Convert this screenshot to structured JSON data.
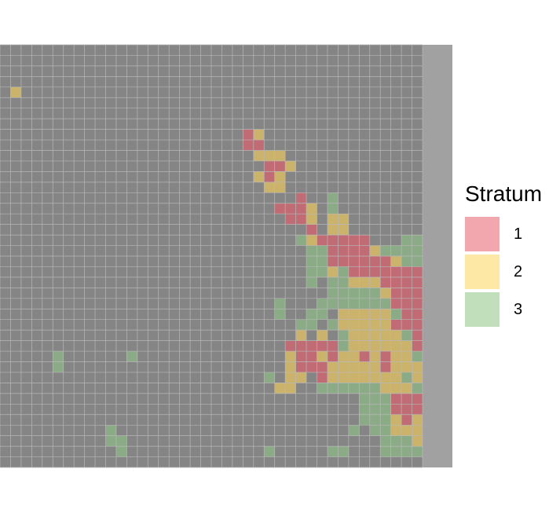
{
  "chart_data": {
    "type": "heatmap",
    "title": "",
    "xlabel": "",
    "ylabel": "",
    "grid": true,
    "legend_placement": "right",
    "legend": {
      "title": "Stratum",
      "entries": [
        {
          "label": "1",
          "color": "#f2a6ad"
        },
        {
          "label": "2",
          "color": "#fde8a6"
        },
        {
          "label": "3",
          "color": "#c0dfba"
        }
      ]
    },
    "background_color": "#858585",
    "strip_color": "#a1a1a1",
    "cell_colors": {
      "1": "#c16c75",
      "2": "#ccb36b",
      "3": "#8bab86"
    },
    "ncols": 40,
    "nrows": 40,
    "cells": [
      [
        1,
        4,
        2
      ],
      [
        23,
        8,
        1
      ],
      [
        24,
        8,
        2
      ],
      [
        23,
        9,
        1
      ],
      [
        24,
        9,
        1
      ],
      [
        24,
        10,
        2
      ],
      [
        25,
        10,
        2
      ],
      [
        26,
        10,
        2
      ],
      [
        25,
        11,
        1
      ],
      [
        26,
        11,
        1
      ],
      [
        27,
        11,
        2
      ],
      [
        24,
        12,
        2
      ],
      [
        25,
        12,
        1
      ],
      [
        26,
        12,
        2
      ],
      [
        25,
        13,
        2
      ],
      [
        26,
        13,
        2
      ],
      [
        28,
        14,
        1
      ],
      [
        31,
        14,
        3
      ],
      [
        26,
        15,
        1
      ],
      [
        27,
        15,
        1
      ],
      [
        28,
        15,
        1
      ],
      [
        29,
        15,
        2
      ],
      [
        31,
        15,
        3
      ],
      [
        27,
        16,
        1
      ],
      [
        28,
        16,
        1
      ],
      [
        29,
        16,
        2
      ],
      [
        31,
        16,
        2
      ],
      [
        32,
        16,
        2
      ],
      [
        29,
        17,
        1
      ],
      [
        31,
        17,
        2
      ],
      [
        32,
        17,
        2
      ],
      [
        28,
        18,
        3
      ],
      [
        29,
        18,
        2
      ],
      [
        30,
        18,
        1
      ],
      [
        31,
        18,
        1
      ],
      [
        32,
        18,
        1
      ],
      [
        33,
        18,
        1
      ],
      [
        34,
        18,
        1
      ],
      [
        38,
        18,
        3
      ],
      [
        39,
        18,
        3
      ],
      [
        29,
        19,
        3
      ],
      [
        30,
        19,
        3
      ],
      [
        31,
        19,
        1
      ],
      [
        32,
        19,
        1
      ],
      [
        33,
        19,
        1
      ],
      [
        34,
        19,
        1
      ],
      [
        35,
        19,
        2
      ],
      [
        36,
        19,
        3
      ],
      [
        37,
        19,
        3
      ],
      [
        38,
        19,
        3
      ],
      [
        39,
        19,
        3
      ],
      [
        29,
        20,
        3
      ],
      [
        30,
        20,
        3
      ],
      [
        31,
        20,
        1
      ],
      [
        32,
        20,
        1
      ],
      [
        33,
        20,
        1
      ],
      [
        34,
        20,
        1
      ],
      [
        35,
        20,
        1
      ],
      [
        36,
        20,
        1
      ],
      [
        37,
        20,
        2
      ],
      [
        38,
        20,
        3
      ],
      [
        39,
        20,
        3
      ],
      [
        29,
        21,
        3
      ],
      [
        30,
        21,
        3
      ],
      [
        31,
        21,
        2
      ],
      [
        32,
        21,
        3
      ],
      [
        33,
        21,
        1
      ],
      [
        34,
        21,
        1
      ],
      [
        35,
        21,
        1
      ],
      [
        36,
        21,
        1
      ],
      [
        37,
        21,
        1
      ],
      [
        38,
        21,
        1
      ],
      [
        39,
        21,
        1
      ],
      [
        29,
        22,
        3
      ],
      [
        31,
        22,
        3
      ],
      [
        32,
        22,
        3
      ],
      [
        33,
        22,
        2
      ],
      [
        34,
        22,
        2
      ],
      [
        35,
        22,
        2
      ],
      [
        36,
        22,
        1
      ],
      [
        37,
        22,
        1
      ],
      [
        38,
        22,
        1
      ],
      [
        39,
        22,
        1
      ],
      [
        31,
        23,
        3
      ],
      [
        32,
        23,
        3
      ],
      [
        33,
        23,
        3
      ],
      [
        34,
        23,
        3
      ],
      [
        35,
        23,
        3
      ],
      [
        36,
        23,
        2
      ],
      [
        37,
        23,
        1
      ],
      [
        38,
        23,
        1
      ],
      [
        39,
        23,
        1
      ],
      [
        26,
        24,
        3
      ],
      [
        30,
        24,
        3
      ],
      [
        31,
        24,
        3
      ],
      [
        32,
        24,
        3
      ],
      [
        33,
        24,
        3
      ],
      [
        34,
        24,
        3
      ],
      [
        35,
        24,
        3
      ],
      [
        36,
        24,
        3
      ],
      [
        37,
        24,
        1
      ],
      [
        38,
        24,
        1
      ],
      [
        39,
        24,
        1
      ],
      [
        26,
        25,
        3
      ],
      [
        29,
        25,
        3
      ],
      [
        30,
        25,
        3
      ],
      [
        32,
        25,
        2
      ],
      [
        33,
        25,
        2
      ],
      [
        34,
        25,
        2
      ],
      [
        35,
        25,
        2
      ],
      [
        36,
        25,
        2
      ],
      [
        37,
        25,
        3
      ],
      [
        38,
        25,
        1
      ],
      [
        39,
        25,
        1
      ],
      [
        28,
        26,
        3
      ],
      [
        29,
        26,
        3
      ],
      [
        31,
        26,
        3
      ],
      [
        32,
        26,
        2
      ],
      [
        33,
        26,
        2
      ],
      [
        34,
        26,
        2
      ],
      [
        35,
        26,
        2
      ],
      [
        36,
        26,
        2
      ],
      [
        37,
        26,
        1
      ],
      [
        38,
        26,
        1
      ],
      [
        39,
        26,
        1
      ],
      [
        28,
        27,
        2
      ],
      [
        30,
        27,
        2
      ],
      [
        32,
        27,
        3
      ],
      [
        33,
        27,
        2
      ],
      [
        34,
        27,
        2
      ],
      [
        35,
        27,
        2
      ],
      [
        36,
        27,
        2
      ],
      [
        37,
        27,
        2
      ],
      [
        38,
        27,
        3
      ],
      [
        39,
        27,
        1
      ],
      [
        27,
        28,
        1
      ],
      [
        28,
        28,
        1
      ],
      [
        29,
        28,
        1
      ],
      [
        30,
        28,
        1
      ],
      [
        31,
        28,
        1
      ],
      [
        32,
        28,
        3
      ],
      [
        33,
        28,
        2
      ],
      [
        34,
        28,
        2
      ],
      [
        35,
        28,
        2
      ],
      [
        36,
        28,
        2
      ],
      [
        37,
        28,
        2
      ],
      [
        38,
        28,
        2
      ],
      [
        39,
        28,
        1
      ],
      [
        5,
        29,
        3
      ],
      [
        12,
        29,
        3
      ],
      [
        27,
        29,
        2
      ],
      [
        28,
        29,
        1
      ],
      [
        29,
        29,
        1
      ],
      [
        30,
        29,
        2
      ],
      [
        31,
        29,
        1
      ],
      [
        32,
        29,
        2
      ],
      [
        33,
        29,
        2
      ],
      [
        34,
        29,
        1
      ],
      [
        35,
        29,
        2
      ],
      [
        36,
        29,
        1
      ],
      [
        37,
        29,
        2
      ],
      [
        38,
        29,
        2
      ],
      [
        39,
        29,
        3
      ],
      [
        5,
        30,
        3
      ],
      [
        27,
        30,
        2
      ],
      [
        28,
        30,
        1
      ],
      [
        29,
        30,
        1
      ],
      [
        30,
        30,
        1
      ],
      [
        31,
        30,
        2
      ],
      [
        32,
        30,
        2
      ],
      [
        33,
        30,
        2
      ],
      [
        34,
        30,
        2
      ],
      [
        35,
        30,
        2
      ],
      [
        36,
        30,
        1
      ],
      [
        37,
        30,
        2
      ],
      [
        38,
        30,
        2
      ],
      [
        39,
        30,
        2
      ],
      [
        25,
        31,
        3
      ],
      [
        27,
        31,
        2
      ],
      [
        28,
        31,
        2
      ],
      [
        30,
        31,
        1
      ],
      [
        31,
        31,
        2
      ],
      [
        32,
        31,
        2
      ],
      [
        33,
        31,
        2
      ],
      [
        34,
        31,
        2
      ],
      [
        35,
        31,
        2
      ],
      [
        36,
        31,
        2
      ],
      [
        37,
        31,
        2
      ],
      [
        38,
        31,
        3
      ],
      [
        39,
        31,
        2
      ],
      [
        26,
        32,
        2
      ],
      [
        27,
        32,
        2
      ],
      [
        30,
        32,
        3
      ],
      [
        31,
        32,
        3
      ],
      [
        32,
        32,
        3
      ],
      [
        33,
        32,
        3
      ],
      [
        34,
        32,
        3
      ],
      [
        35,
        32,
        3
      ],
      [
        36,
        32,
        2
      ],
      [
        37,
        32,
        2
      ],
      [
        38,
        32,
        2
      ],
      [
        39,
        32,
        3
      ],
      [
        34,
        33,
        3
      ],
      [
        35,
        33,
        3
      ],
      [
        36,
        33,
        3
      ],
      [
        37,
        33,
        1
      ],
      [
        38,
        33,
        1
      ],
      [
        39,
        33,
        1
      ],
      [
        34,
        34,
        3
      ],
      [
        35,
        34,
        3
      ],
      [
        36,
        34,
        3
      ],
      [
        37,
        34,
        1
      ],
      [
        38,
        34,
        1
      ],
      [
        39,
        34,
        1
      ],
      [
        34,
        35,
        3
      ],
      [
        35,
        35,
        3
      ],
      [
        36,
        35,
        3
      ],
      [
        37,
        35,
        2
      ],
      [
        38,
        35,
        1
      ],
      [
        39,
        35,
        2
      ],
      [
        10,
        36,
        3
      ],
      [
        33,
        36,
        3
      ],
      [
        35,
        36,
        3
      ],
      [
        36,
        36,
        3
      ],
      [
        37,
        36,
        2
      ],
      [
        38,
        36,
        2
      ],
      [
        39,
        36,
        2
      ],
      [
        10,
        37,
        3
      ],
      [
        11,
        37,
        3
      ],
      [
        36,
        37,
        3
      ],
      [
        37,
        37,
        3
      ],
      [
        38,
        37,
        3
      ],
      [
        39,
        37,
        2
      ],
      [
        11,
        38,
        3
      ],
      [
        25,
        38,
        3
      ],
      [
        31,
        38,
        3
      ],
      [
        32,
        38,
        3
      ],
      [
        36,
        38,
        3
      ],
      [
        37,
        38,
        3
      ],
      [
        38,
        38,
        3
      ],
      [
        39,
        38,
        3
      ]
    ]
  }
}
